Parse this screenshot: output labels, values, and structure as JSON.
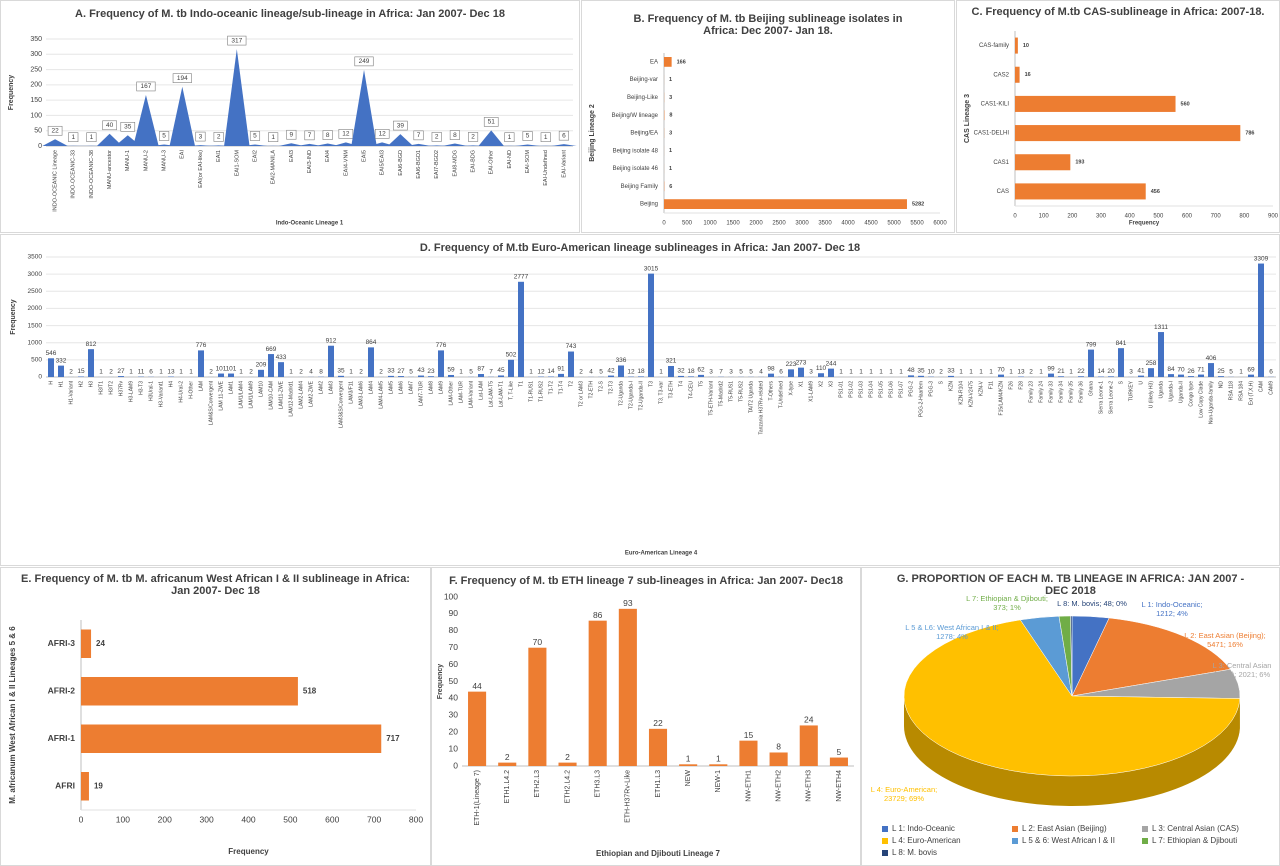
{
  "chart_data": [
    {
      "type": "area",
      "title": "A. Frequency of M. tb Indo-oceanic lineage/sub-lineage in Africa: Jan 2007- Dec 18",
      "xlabel": "Indo-Oceanic Lineage 1",
      "ylabel": "Frequency",
      "color": "#4472c4",
      "grid": true,
      "categories": [
        "INDO-OCEANIC Lineage",
        "INDO-OCEANIC-33",
        "INDO-OCEANIC-38",
        "MANU-ancestor",
        "MANU-1",
        "MANU-2",
        "MANU-3",
        "EAI",
        "EAI(or EAI-like)",
        "EAI1",
        "EAI1-SOM",
        "EAI2",
        "EAI2-MANILA",
        "EAI3",
        "EAI3-IND",
        "EAI4",
        "EAI4-VNM",
        "EAI5",
        "EAI5/EAI3",
        "EAI6-BGD",
        "EAI6-BGD1",
        "EAI7-BGD2",
        "EAI8-MDG",
        "EAI-BDG",
        "EAI-Other",
        "EAI-ND",
        "EAI-SOM",
        "EAI-Undefined",
        "EAI-Variant"
      ],
      "values": [
        22,
        1,
        1,
        40,
        35,
        167,
        5,
        194,
        3,
        2,
        317,
        5,
        1,
        9,
        7,
        8,
        12,
        249,
        12,
        39,
        7,
        2,
        8,
        2,
        51,
        1,
        5,
        1,
        6
      ],
      "ylim": [
        0,
        350
      ],
      "yticks": [
        0,
        50,
        100,
        150,
        200,
        250,
        300,
        350
      ]
    },
    {
      "type": "hbar",
      "title": "B. Frequency of M. tb Beijing sublineage isolates in Africa: Dec 2007- Jan 18.",
      "ylabel": "Beijing Lineage 2",
      "color": "#ed7d31",
      "categories": [
        "EA",
        "Beijing-var",
        "Beijing-Like",
        "Beijing/W lineage",
        "Beijing/EA",
        "Beijing isolate 48",
        "Beijing isolate 46",
        "Beijing Family",
        "Beijing"
      ],
      "values": [
        166,
        1,
        3,
        8,
        3,
        1,
        1,
        6,
        5282
      ],
      "xlim": [
        0,
        6000
      ],
      "xticks": [
        0,
        500,
        1000,
        1500,
        2000,
        2500,
        3000,
        3500,
        4000,
        4500,
        5000,
        5500,
        6000
      ]
    },
    {
      "type": "hbar",
      "title": "C. Frequency of M.tb CAS-sublineage in Africa: 2007-18.",
      "xlabel": "Frequency",
      "ylabel": "CAS Lineage 3",
      "color": "#ed7d31",
      "categories": [
        "CAS-family",
        "CAS2",
        "CAS1-KILI",
        "CAS1-DELHI",
        "CAS1",
        "CAS"
      ],
      "values": [
        10,
        16,
        560,
        786,
        193,
        456
      ],
      "xlim": [
        0,
        900
      ],
      "xticks": [
        0,
        100,
        200,
        300,
        400,
        500,
        600,
        700,
        800,
        900
      ]
    },
    {
      "type": "bar",
      "title": "D. Frequency of M.tb Euro-American lineage sublineages in Africa: Jan 2007- Dec 18",
      "xlabel": "Euro-American Lineage 4",
      "ylabel": "Frequency",
      "color": "#4472c4",
      "grid": true,
      "categories": [
        "H",
        "H1",
        "H1-Variant",
        "H2",
        "H3",
        "H3/T1",
        "H3/T2",
        "H37Rv",
        "H3-LAM9",
        "H3-T3",
        "H3Ural-1",
        "H3-Variant1",
        "H4",
        "H4-Ural-2",
        "H-Other",
        "LAM",
        "LAM&S/Convergent",
        "LAM 11-ZWE",
        "LAM1",
        "LAM1/LAM4",
        "LAM1/LAM9",
        "LAM10",
        "LAM10-CAM",
        "LAM11-ZWE",
        "LAM12-Madrid1",
        "LAM2-LAM4",
        "LAM2-ZWE",
        "LAM2",
        "LAM3",
        "LAM3&S/Convergent",
        "LAM3/F11",
        "LAM3-LAM6",
        "LAM4",
        "LAM4-LAM5",
        "LAM5",
        "LAM6",
        "LAM7",
        "LAM7-TUR",
        "LAM8",
        "LAM9",
        "LAM-Other",
        "LAM-TUR",
        "LAM-Variant",
        "Lat-LAM",
        "Lat-LAM-T5",
        "Lat-LAM-T1",
        "T, T-Like",
        "T1",
        "T1-RUS1",
        "T1-RUS2",
        "T1-T2",
        "T1-T4",
        "T2",
        "T2 or LAM3",
        "T2-ETH",
        "T2-S",
        "T2-T3",
        "T2-Uganda",
        "T2-Uganda-I",
        "T2-Uganda-II",
        "T3",
        "T3, T3-var",
        "T3-ETH",
        "T4",
        "T4-CEU",
        "T5",
        "T5-ETH-Variant",
        "T5-Madrid2",
        "T5-RUS1",
        "T5-RUS2",
        "TA/T2 Uganda",
        "Tanzania H37Rv-related",
        "T-Others",
        "T-Undefined",
        "X-type",
        "X1",
        "X1-LAM9",
        "X2",
        "X3",
        "PS1-01",
        "PS1-02",
        "PS1-03",
        "PS1-04",
        "PS1-05",
        "PS1-06",
        "PS1-07",
        "PGG-2",
        "PGG-2-Haarlem",
        "PGG-3",
        "S",
        "KZN",
        "KZN-R104",
        "KZN-V2475",
        "KZN-V",
        "F11",
        "F15/LAM4/KZN",
        "F26",
        "F28",
        "Family 23",
        "Family 24",
        "Family 33",
        "Family 34",
        "Family 35",
        "Family 36",
        "Ghana",
        "Sierra Leone-1",
        "Sierra Leone-2",
        "S",
        "TURKEY",
        "U",
        "U (likely H3)",
        "Uganda",
        "Uganda-I",
        "Uganda-II",
        "Congo type",
        "Low Copy Clade",
        "Non-Uganda-family",
        "ND",
        "RSA 118",
        "RSA 184",
        "Ext (T,X,H)",
        "CAM",
        "CAM9"
      ],
      "values": [
        546,
        332,
        2,
        15,
        812,
        1,
        2,
        27,
        1,
        11,
        6,
        1,
        13,
        1,
        1,
        776,
        2,
        101,
        101,
        1,
        2,
        209,
        669,
        433,
        1,
        2,
        4,
        8,
        912,
        35,
        1,
        2,
        864,
        2,
        33,
        27,
        5,
        43,
        23,
        776,
        59,
        1,
        5,
        87,
        7,
        45,
        502,
        2777,
        1,
        12,
        14,
        91,
        743,
        2,
        4,
        5,
        42,
        336,
        12,
        18,
        3015,
        1,
        321,
        32,
        18,
        62,
        3,
        7,
        3,
        5,
        5,
        4,
        98,
        6,
        223,
        273,
        3,
        110,
        244,
        1,
        1,
        1,
        1,
        1,
        1,
        1,
        48,
        35,
        10,
        2,
        33,
        1,
        1,
        1,
        1,
        70,
        1,
        13,
        2,
        1,
        99,
        21,
        1,
        22,
        799,
        14,
        20,
        841,
        3,
        41,
        258,
        1311,
        84,
        70,
        26,
        71,
        406,
        25,
        5,
        1,
        69,
        3309,
        6
      ],
      "ylim": [
        0,
        3500
      ],
      "yticks": [
        0,
        500,
        1000,
        1500,
        2000,
        2500,
        3000,
        3500
      ]
    },
    {
      "type": "hbar",
      "title": "E. Frequency of M. tb M. africanum West African I & II sublineage in Africa: Jan 2007- Dec 18",
      "xlabel": "Frequency",
      "ylabel": "M. africanum West African I & II Lineages 5 & 6",
      "color": "#ed7d31",
      "categories": [
        "AFRI-3",
        "AFRI-2",
        "AFRI-1",
        "AFRI"
      ],
      "values": [
        24,
        518,
        717,
        19
      ],
      "xlim": [
        0,
        800
      ],
      "xticks": [
        0,
        100,
        200,
        300,
        400,
        500,
        600,
        700,
        800
      ]
    },
    {
      "type": "bar",
      "title": "F. Frequency of M. tb ETH lineage 7 sub-lineages in Africa: Jan 2007- Dec18",
      "xlabel": "Ethiopian and Djibouti Lineage 7",
      "ylabel": "Frequency",
      "color": "#ed7d31",
      "categories": [
        "ETH-1(Lineage 7)",
        "ETH1.L4.2",
        "ETH2.L3",
        "ETH2.L4.2",
        "ETH3.L3",
        "ETH-H37Rv-Like",
        "ETH1.L3",
        "NEW",
        "NEW-1",
        "NW-ETH1",
        "NW-ETH2",
        "NW-ETH3",
        "NW-ETH4"
      ],
      "values": [
        44,
        2,
        70,
        2,
        86,
        93,
        22,
        1,
        1,
        15,
        8,
        24,
        5
      ],
      "ylim": [
        0,
        100
      ],
      "yticks": [
        0,
        10,
        20,
        30,
        40,
        50,
        60,
        70,
        80,
        90,
        100
      ]
    },
    {
      "type": "pie",
      "title": "G. PROPORTION OF EACH M. TB LINEAGE IN AFRICA: JAN 2007 - DEC 2018",
      "categories": [
        "L 1: Indo-Oceanic",
        "L 2: East Asian (Beijing)",
        "L 3: Central Asian (CAS)",
        "L 4: Euro-American",
        "L 5 & 6: West African I & II",
        "L 7: Ethiopian & Djibouti",
        "L 8: M. bovis"
      ],
      "values": [
        1212,
        5471,
        2021,
        23729,
        1278,
        373,
        48
      ],
      "value_labels": [
        "L 1: Indo-Oceanic; 1212; 4%",
        "L 2: East Asian (Beijing); 5471; 16%",
        "L 3: Central Asian (CAS); 2021; 6%",
        "L 4: Euro-American; 23729; 69%",
        "L 5 & L6: West African I & II; 1278; 4%",
        "L 7: Ethiopian & Djibouti; 373; 1%",
        "L 8: M. bovis; 48; 0%"
      ],
      "colors": [
        "#4472c4",
        "#ed7d31",
        "#a5a5a5",
        "#ffc000",
        "#5b9bd5",
        "#70ad47",
        "#264478"
      ]
    }
  ]
}
